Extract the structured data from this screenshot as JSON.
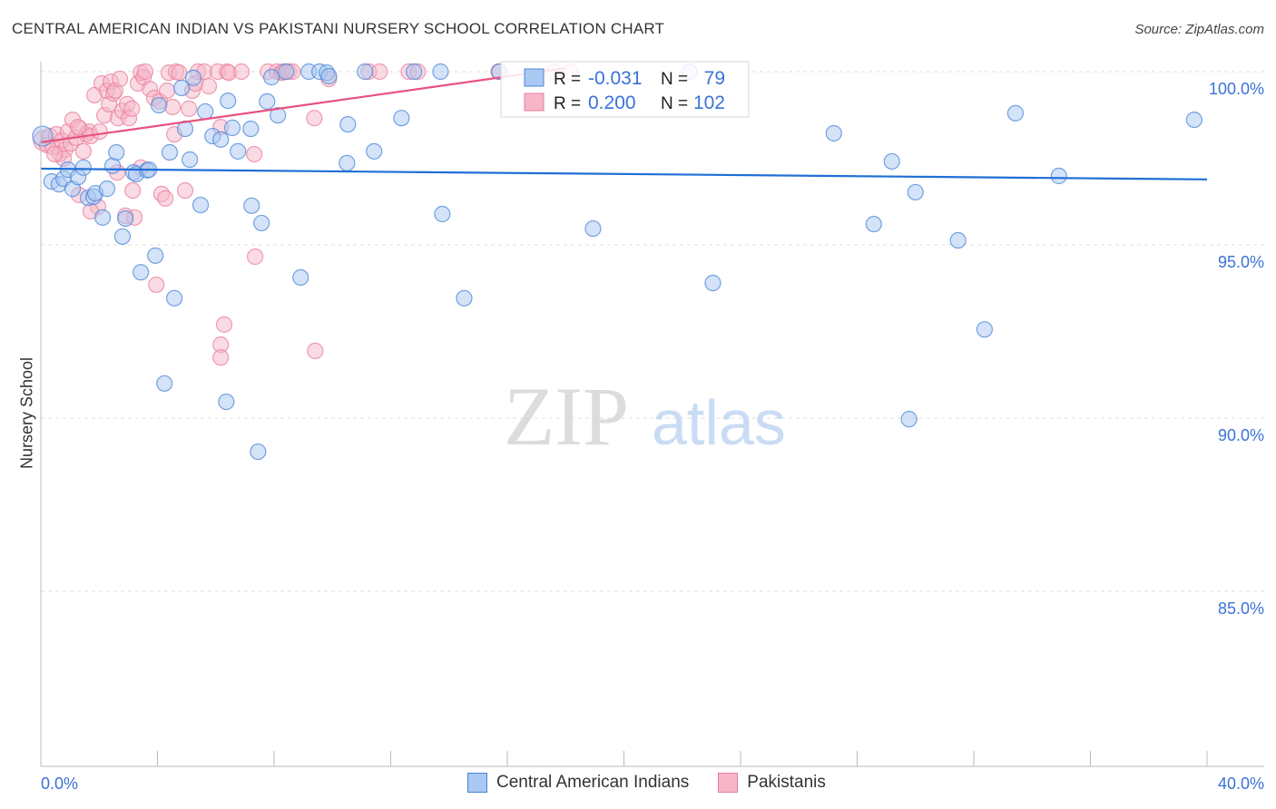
{
  "title": "CENTRAL AMERICAN INDIAN VS PAKISTANI NURSERY SCHOOL CORRELATION CHART",
  "source": "Source: ZipAtlas.com",
  "watermark": {
    "zip": "ZIP",
    "atlas": "atlas"
  },
  "colors": {
    "blue_fill": "#a9c8f2",
    "blue_stroke": "#4a86d8",
    "blue_line": "#1f6fd6",
    "pink_fill": "#f6b6c8",
    "pink_stroke": "#e97d9e",
    "pink_line": "#e8517e",
    "axis_label": "#3b72d8"
  },
  "legend": {
    "rows": [
      {
        "r_label": "R =",
        "r_value": "-0.031",
        "n_label": "N =",
        "n_value": "79"
      },
      {
        "r_label": "R =",
        "r_value": "0.200",
        "n_label": "N =",
        "n_value": "102"
      }
    ]
  },
  "chart_data": {
    "type": "scatter",
    "title": "CENTRAL AMERICAN INDIAN VS PAKISTANI NURSERY SCHOOL CORRELATION CHART",
    "xlabel": "",
    "ylabel": "Nursery School",
    "xlim": [
      0,
      40
    ],
    "ylim": [
      80,
      100.3
    ],
    "x_tick_labels": [
      "0.0%",
      "40.0%"
    ],
    "y_ticks": [
      100,
      95,
      90,
      85
    ],
    "y_tick_labels": [
      "100.0%",
      "95.0%",
      "90.0%",
      "85.0%"
    ],
    "grid": true,
    "legend_position": "top-center",
    "series": [
      {
        "name": "Central American Indians",
        "trend": [
          [
            0,
            97.2
          ],
          [
            40,
            96.89
          ]
        ],
        "points": [
          [
            0.06,
            98.14
          ],
          [
            0.37,
            96.83
          ],
          [
            0.62,
            96.75
          ],
          [
            0.78,
            96.91
          ],
          [
            0.93,
            97.17
          ],
          [
            1.09,
            96.62
          ],
          [
            1.28,
            96.96
          ],
          [
            1.46,
            97.23
          ],
          [
            1.62,
            96.36
          ],
          [
            1.81,
            96.39
          ],
          [
            1.87,
            96.49
          ],
          [
            2.12,
            95.79
          ],
          [
            2.27,
            96.62
          ],
          [
            2.46,
            97.28
          ],
          [
            2.59,
            97.67
          ],
          [
            2.8,
            95.24
          ],
          [
            2.9,
            95.76
          ],
          [
            3.18,
            97.09
          ],
          [
            3.27,
            97.04
          ],
          [
            3.43,
            94.21
          ],
          [
            3.64,
            97.15
          ],
          [
            3.71,
            97.17
          ],
          [
            3.93,
            94.69
          ],
          [
            4.05,
            99.03
          ],
          [
            4.24,
            91.0
          ],
          [
            4.42,
            97.67
          ],
          [
            4.58,
            93.46
          ],
          [
            4.83,
            99.53
          ],
          [
            4.95,
            98.35
          ],
          [
            5.11,
            97.46
          ],
          [
            5.23,
            99.82
          ],
          [
            5.48,
            96.15
          ],
          [
            5.64,
            98.85
          ],
          [
            5.89,
            98.14
          ],
          [
            6.17,
            98.04
          ],
          [
            6.36,
            90.47
          ],
          [
            6.42,
            99.16
          ],
          [
            6.57,
            98.38
          ],
          [
            6.76,
            97.7
          ],
          [
            7.2,
            98.35
          ],
          [
            7.23,
            96.13
          ],
          [
            7.45,
            89.03
          ],
          [
            7.57,
            95.63
          ],
          [
            7.76,
            99.14
          ],
          [
            7.91,
            99.84
          ],
          [
            8.13,
            98.74
          ],
          [
            8.41,
            100
          ],
          [
            8.91,
            94.06
          ],
          [
            9.19,
            100
          ],
          [
            9.56,
            100
          ],
          [
            9.81,
            99.97
          ],
          [
            9.88,
            99.87
          ],
          [
            10.53,
            98.48
          ],
          [
            10.5,
            97.36
          ],
          [
            11.12,
            100
          ],
          [
            11.43,
            97.7
          ],
          [
            12.37,
            98.66
          ],
          [
            12.8,
            100
          ],
          [
            13.71,
            100
          ],
          [
            13.77,
            95.89
          ],
          [
            14.52,
            93.46
          ],
          [
            15.73,
            100
          ],
          [
            18.94,
            95.47
          ],
          [
            22.24,
            100
          ],
          [
            23.05,
            93.9
          ],
          [
            27.2,
            98.22
          ],
          [
            28.57,
            95.6
          ],
          [
            29.19,
            97.41
          ],
          [
            29.78,
            89.97
          ],
          [
            30.0,
            96.52
          ],
          [
            31.46,
            95.13
          ],
          [
            32.37,
            92.56
          ],
          [
            33.43,
            98.8
          ],
          [
            34.92,
            96.99
          ],
          [
            39.56,
            98.61
          ]
        ]
      },
      {
        "name": "Pakistanis",
        "trend": [
          [
            0,
            97.96
          ],
          [
            18,
            100.1
          ]
        ],
        "points": [
          [
            0.09,
            98.01
          ],
          [
            0.22,
            97.88
          ],
          [
            0.31,
            98.14
          ],
          [
            0.4,
            97.83
          ],
          [
            0.53,
            98.19
          ],
          [
            0.65,
            97.62
          ],
          [
            0.72,
            98.01
          ],
          [
            0.84,
            97.75
          ],
          [
            0.93,
            98.27
          ],
          [
            1.03,
            97.93
          ],
          [
            1.09,
            98.61
          ],
          [
            1.21,
            98.09
          ],
          [
            1.34,
            98.35
          ],
          [
            1.46,
            97.7
          ],
          [
            1.56,
            98.19
          ],
          [
            1.65,
            98.27
          ],
          [
            1.71,
            98.14
          ],
          [
            1.84,
            99.32
          ],
          [
            1.96,
            96.1
          ],
          [
            2.02,
            98.27
          ],
          [
            2.09,
            99.66
          ],
          [
            2.18,
            98.74
          ],
          [
            2.27,
            99.45
          ],
          [
            2.34,
            99.06
          ],
          [
            2.4,
            99.71
          ],
          [
            2.49,
            99.37
          ],
          [
            2.55,
            99.45
          ],
          [
            2.65,
            98.66
          ],
          [
            2.71,
            99.79
          ],
          [
            2.8,
            98.87
          ],
          [
            2.9,
            95.84
          ],
          [
            2.96,
            99.06
          ],
          [
            3.02,
            98.66
          ],
          [
            3.12,
            98.93
          ],
          [
            3.15,
            96.57
          ],
          [
            3.21,
            95.79
          ],
          [
            3.33,
            99.66
          ],
          [
            3.43,
            99.97
          ],
          [
            3.52,
            99.84
          ],
          [
            3.58,
            100
          ],
          [
            3.74,
            99.5
          ],
          [
            3.89,
            99.24
          ],
          [
            3.96,
            93.85
          ],
          [
            4.08,
            99.14
          ],
          [
            4.14,
            96.47
          ],
          [
            4.27,
            96.34
          ],
          [
            4.33,
            99.45
          ],
          [
            4.39,
            99.97
          ],
          [
            4.52,
            98.98
          ],
          [
            4.58,
            98.19
          ],
          [
            4.64,
            100
          ],
          [
            4.74,
            99.97
          ],
          [
            4.95,
            96.57
          ],
          [
            5.08,
            98.93
          ],
          [
            5.2,
            99.45
          ],
          [
            5.3,
            99.66
          ],
          [
            5.39,
            100
          ],
          [
            5.61,
            100
          ],
          [
            5.76,
            99.58
          ],
          [
            6.07,
            100
          ],
          [
            6.17,
            98.4
          ],
          [
            6.29,
            92.7
          ],
          [
            6.39,
            100
          ],
          [
            6.17,
            92.12
          ],
          [
            6.17,
            91.75
          ],
          [
            6.45,
            99.97
          ],
          [
            6.88,
            100
          ],
          [
            7.32,
            97.62
          ],
          [
            7.35,
            94.66
          ],
          [
            7.79,
            100
          ],
          [
            8.1,
            100
          ],
          [
            8.26,
            99.97
          ],
          [
            8.32,
            100
          ],
          [
            8.5,
            100
          ],
          [
            8.63,
            100
          ],
          [
            9.38,
            98.66
          ],
          [
            9.41,
            91.94
          ],
          [
            9.88,
            99.79
          ],
          [
            11.25,
            100
          ],
          [
            11.62,
            100
          ],
          [
            12.62,
            100
          ],
          [
            12.93,
            100
          ],
          [
            15.7,
            100
          ],
          [
            17.6,
            100
          ],
          [
            18.16,
            100
          ],
          [
            0.78,
            97.49
          ],
          [
            0.47,
            97.62
          ],
          [
            1.31,
            96.44
          ],
          [
            1.71,
            95.97
          ],
          [
            2.62,
            97.09
          ],
          [
            3.43,
            97.23
          ],
          [
            1.28,
            98.4
          ]
        ]
      }
    ]
  }
}
